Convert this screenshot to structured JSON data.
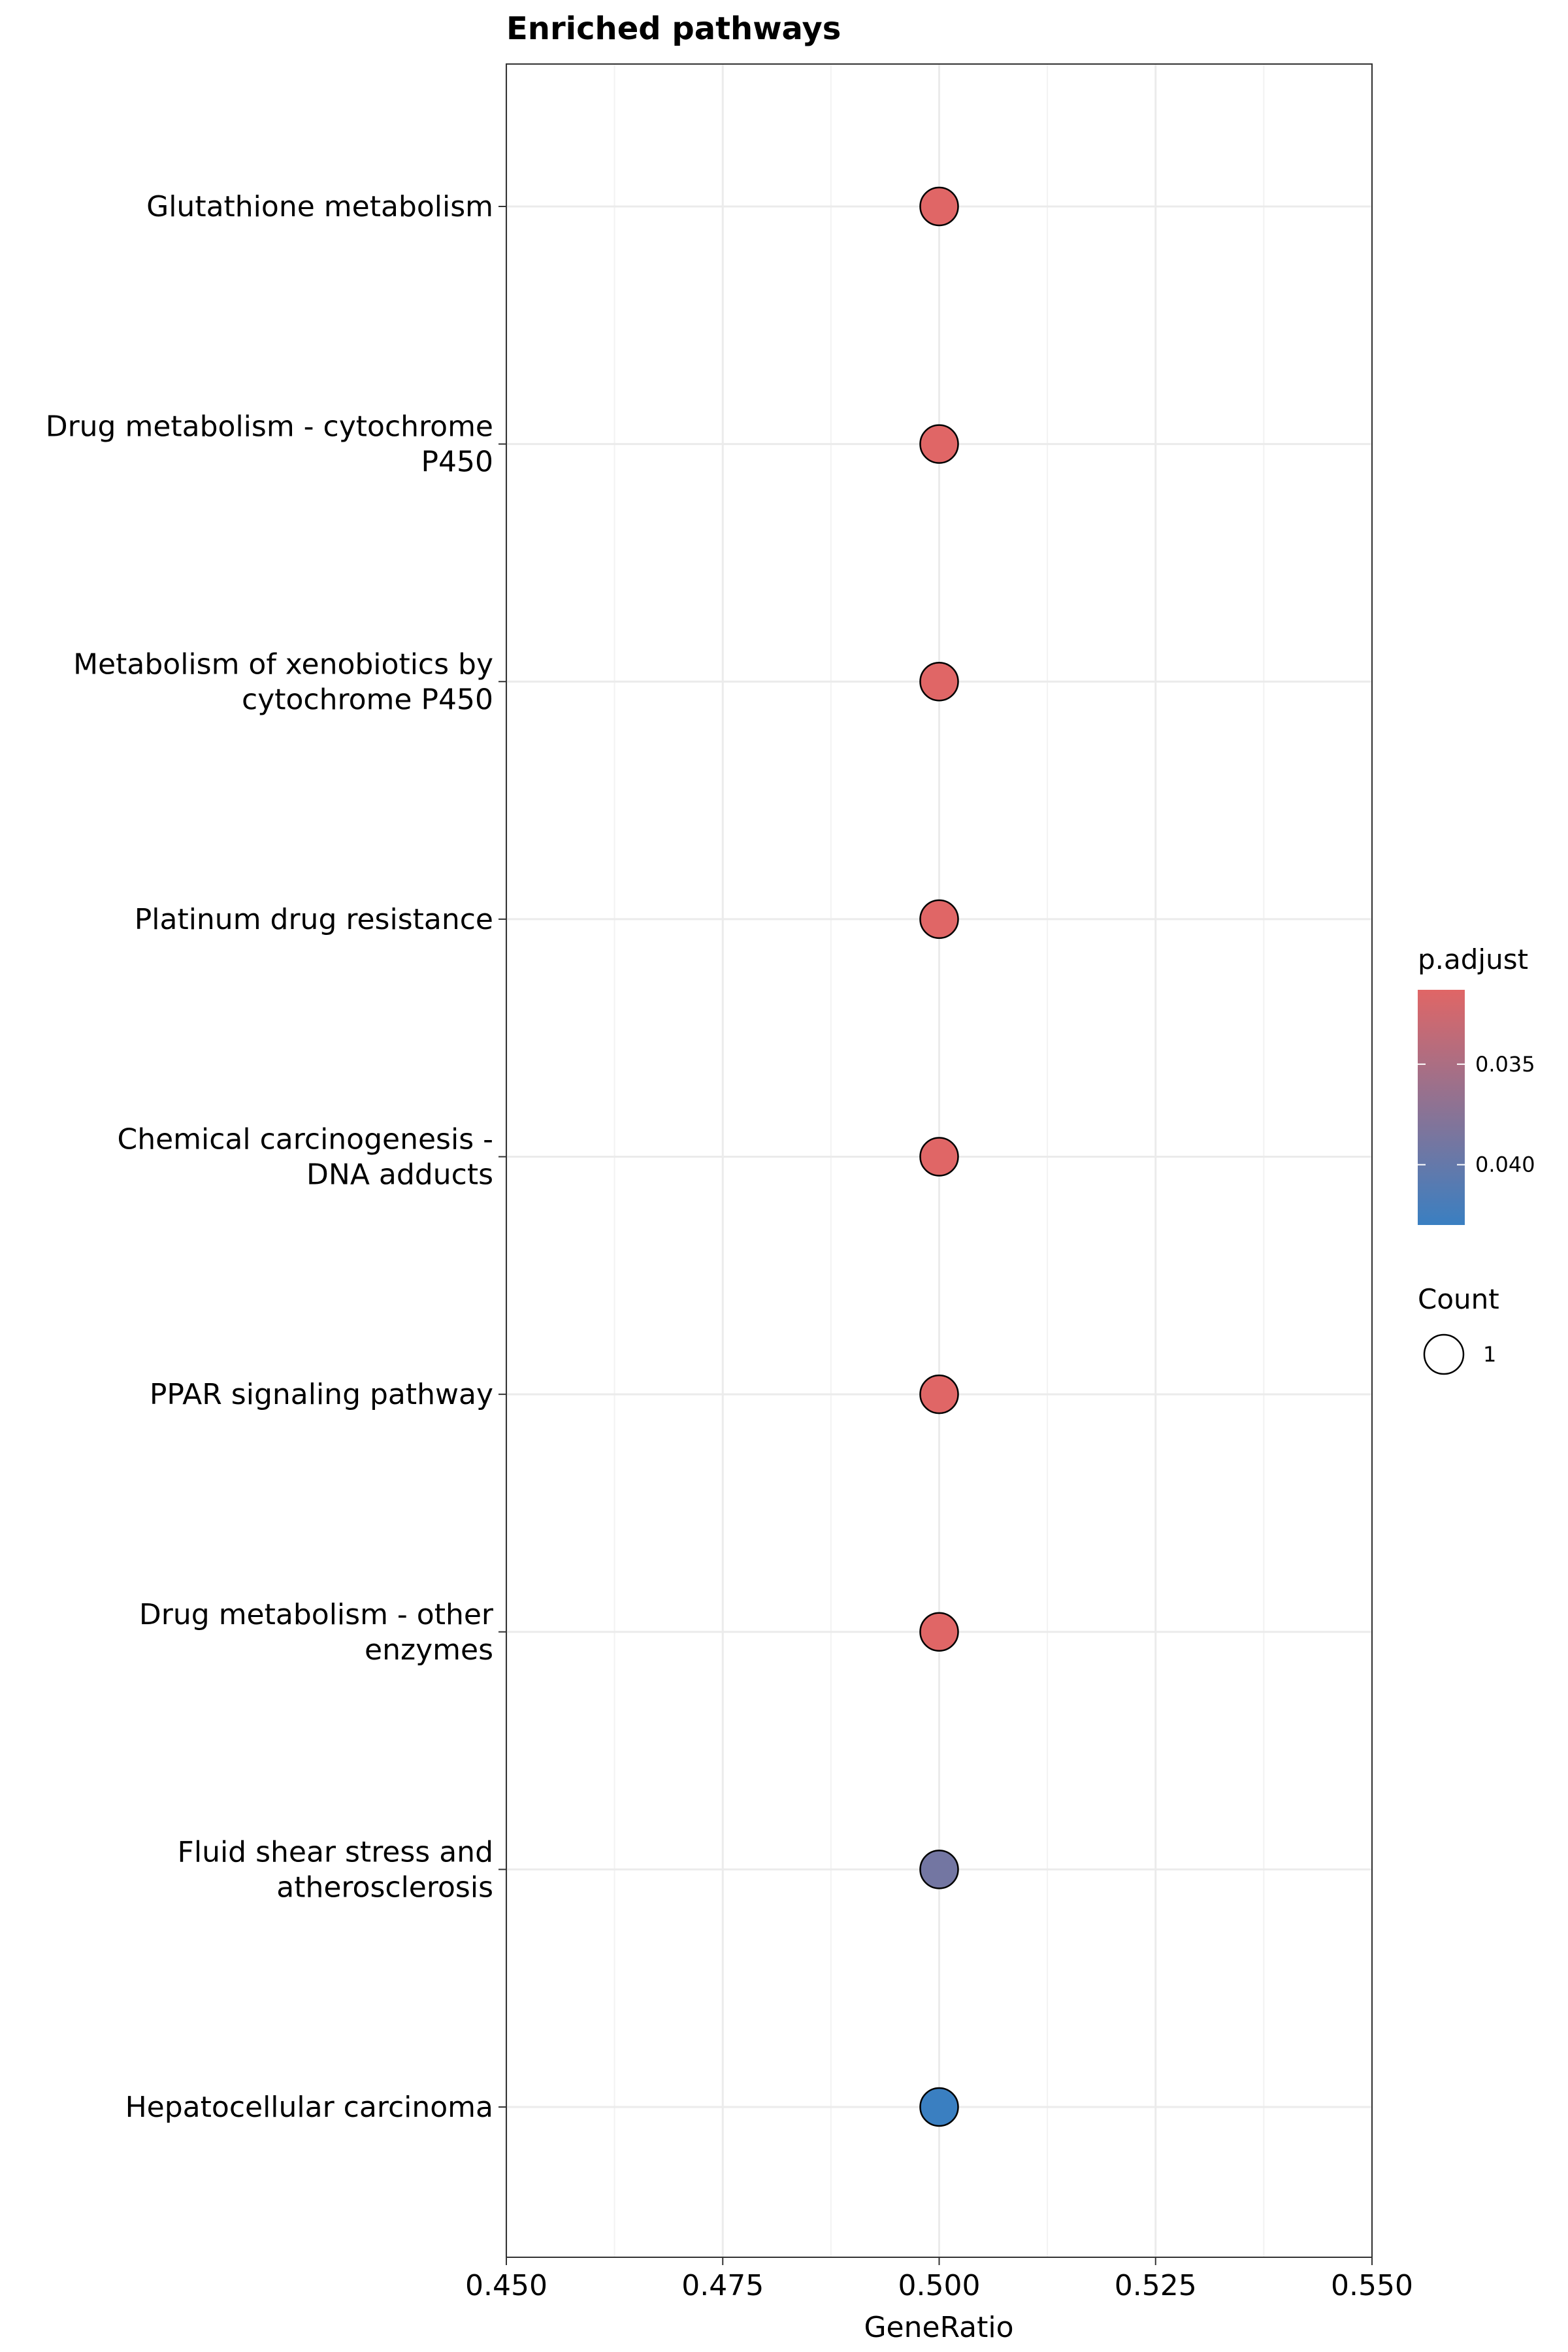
{
  "chart_data": {
    "type": "scatter",
    "title": "Enriched pathways",
    "xlabel": "GeneRatio",
    "ylabel": "",
    "xlim": [
      0.45,
      0.55
    ],
    "x_ticks": [
      "0.450",
      "0.475",
      "0.500",
      "0.525",
      "0.550"
    ],
    "grid": true,
    "categories": [
      "Glutathione metabolism",
      "Drug metabolism - cytochrome P450",
      "Metabolism of xenobiotics by cytochrome P450",
      "Platinum drug resistance",
      "Chemical carcinogenesis - DNA adducts",
      "PPAR signaling pathway",
      "Drug metabolism - other enzymes",
      "Fluid shear stress and atherosclerosis",
      "Hepatocellular carcinoma"
    ],
    "category_label_lines": [
      [
        "Glutathione metabolism"
      ],
      [
        "Drug metabolism - cytochrome",
        "P450"
      ],
      [
        "Metabolism of xenobiotics by",
        "cytochrome P450"
      ],
      [
        "Platinum drug resistance"
      ],
      [
        "Chemical carcinogenesis -",
        "DNA adducts"
      ],
      [
        "PPAR signaling pathway"
      ],
      [
        "Drug metabolism - other",
        "enzymes"
      ],
      [
        "Fluid shear stress and",
        "atherosclerosis"
      ],
      [
        "Hepatocellular carcinoma"
      ]
    ],
    "points": [
      {
        "category": "Glutathione metabolism",
        "gene_ratio": 0.5,
        "count": 1,
        "p_adjust": 0.0313
      },
      {
        "category": "Drug metabolism - cytochrome P450",
        "gene_ratio": 0.5,
        "count": 1,
        "p_adjust": 0.0313
      },
      {
        "category": "Metabolism of xenobiotics by cytochrome P450",
        "gene_ratio": 0.5,
        "count": 1,
        "p_adjust": 0.0313
      },
      {
        "category": "Platinum drug resistance",
        "gene_ratio": 0.5,
        "count": 1,
        "p_adjust": 0.0313
      },
      {
        "category": "Chemical carcinogenesis - DNA adducts",
        "gene_ratio": 0.5,
        "count": 1,
        "p_adjust": 0.0313
      },
      {
        "category": "PPAR signaling pathway",
        "gene_ratio": 0.5,
        "count": 1,
        "p_adjust": 0.0313
      },
      {
        "category": "Drug metabolism - other enzymes",
        "gene_ratio": 0.5,
        "count": 1,
        "p_adjust": 0.0313
      },
      {
        "category": "Fluid shear stress and atherosclerosis",
        "gene_ratio": 0.5,
        "count": 1,
        "p_adjust": 0.039
      },
      {
        "category": "Hepatocellular carcinoma",
        "gene_ratio": 0.5,
        "count": 1,
        "p_adjust": 0.043
      }
    ],
    "color_legend": {
      "title": "p.adjust",
      "ticks": [
        "0.035",
        "0.040"
      ],
      "tick_values": [
        0.035,
        0.04
      ],
      "range": [
        0.0313,
        0.043
      ],
      "low_color": "#e06666",
      "high_color": "#3a7fc1",
      "orientation": "reversed (low at top)"
    },
    "size_legend": {
      "title": "Count",
      "labels": [
        "1"
      ]
    },
    "legend_position": "right"
  }
}
